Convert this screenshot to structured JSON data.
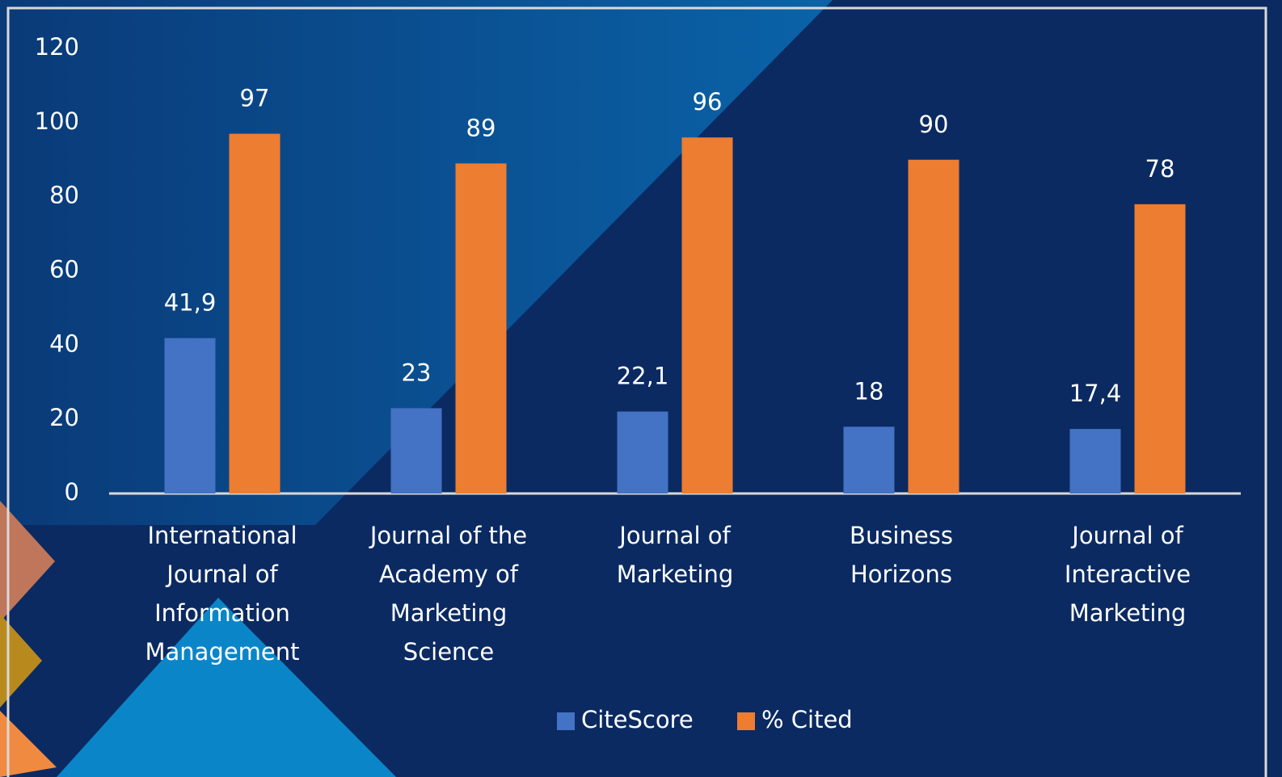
{
  "chart_data": {
    "type": "bar",
    "categories": [
      "International Journal of Information Management",
      "Journal of the Academy of Marketing Science",
      "Journal of Marketing",
      "Business Horizons",
      "Journal of Interactive Marketing"
    ],
    "series": [
      {
        "name": "CiteScore",
        "color": "#4472c4",
        "values": [
          41.9,
          23,
          22.1,
          18,
          17.4
        ],
        "value_labels": [
          "41,9",
          "23",
          "22,1",
          "18",
          "17,4"
        ]
      },
      {
        "name": "% Cited",
        "color": "#ed7d31",
        "values": [
          97,
          89,
          96,
          90,
          78
        ]
      }
    ],
    "ylim": [
      0,
      120
    ],
    "yticks": [
      0,
      20,
      40,
      60,
      80,
      100,
      120
    ],
    "grid": false,
    "legend": "bottom"
  }
}
